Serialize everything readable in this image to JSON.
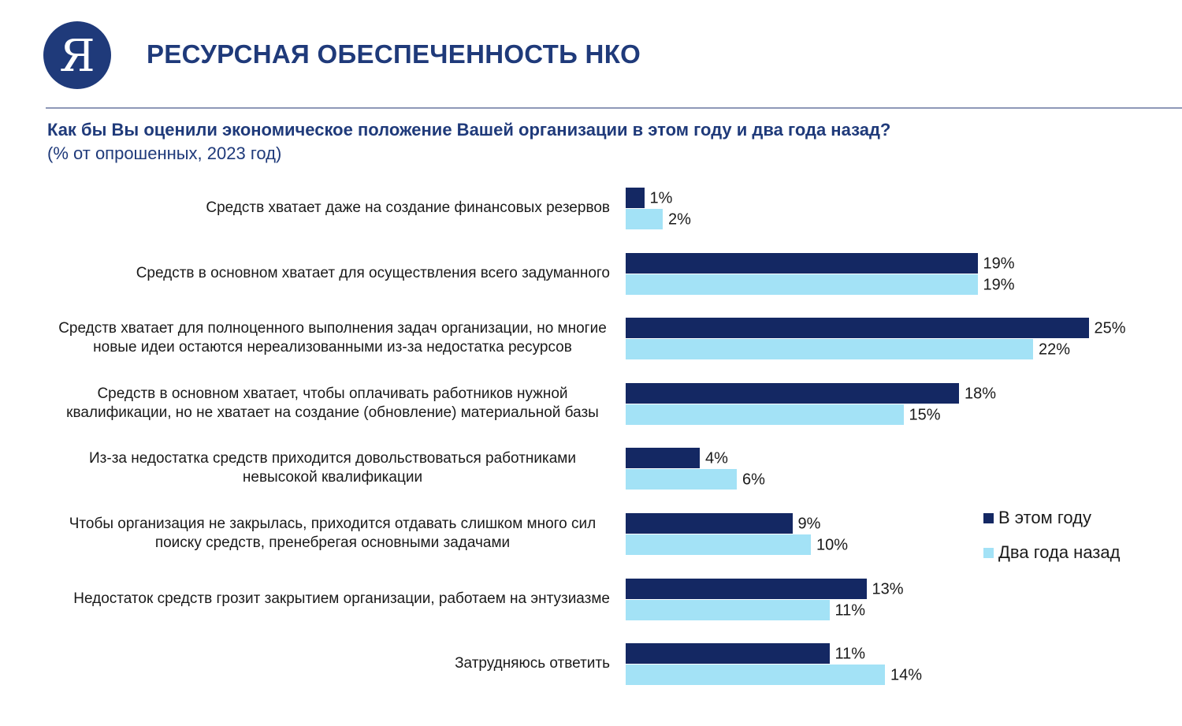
{
  "header": {
    "logo_letter": "Я",
    "title": "РЕСУРСНАЯ ОБЕСПЕЧЕННОСТЬ НКО"
  },
  "question": "Как бы Вы оценили экономическое положение Вашей организации в этом году и два года назад?",
  "subtitle": "(% от опрошенных,  2023 год)",
  "colors": {
    "brand": "#1f3a7a",
    "this_year": "#142863",
    "two_years_ago": "#a3e2f6"
  },
  "chart_data": {
    "type": "bar",
    "orientation": "horizontal",
    "value_format": "{v}%",
    "categories": [
      "Средств хватает даже на создание финансовых резервов",
      "Средств в основном хватает для осуществления всего задуманного",
      "Средств хватает для полноценного выполнения задач организации, но многие новые идеи остаются нереализованными из-за недостатка ресурсов",
      "Средств в основном хватает, чтобы оплачивать работников нужной квалификации, но не хватает на создание (обновление) материальной базы",
      "Из-за недостатка средств приходится довольствоваться работниками невысокой квалификации",
      "Чтобы организация не закрылась, приходится отдавать слишком много сил поиску средств, пренебрегая основными задачами",
      "Недостаток средств грозит закрытием организации, работаем на энтузиазме",
      "Затрудняюсь ответить"
    ],
    "series": [
      {
        "name": "В этом году",
        "color": "#142863",
        "values": [
          1,
          19,
          25,
          18,
          4,
          9,
          13,
          11
        ]
      },
      {
        "name": "Два года назад",
        "color": "#a3e2f6",
        "values": [
          2,
          19,
          22,
          15,
          6,
          10,
          11,
          14
        ]
      }
    ],
    "legend_position": "right",
    "grid": false
  }
}
